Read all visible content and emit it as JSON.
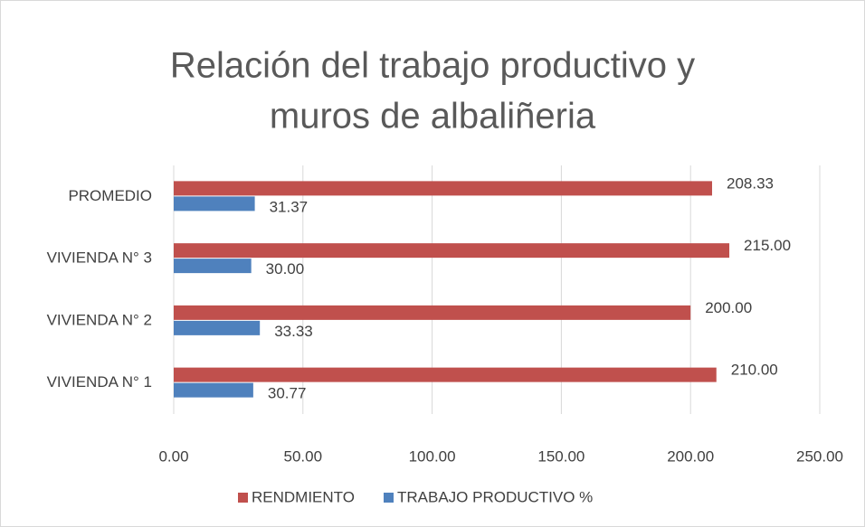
{
  "chart_data": {
    "type": "bar",
    "orientation": "horizontal",
    "title": [
      "Relación del trabajo productivo y",
      "muros de albaliñeria"
    ],
    "categories": [
      "VIVIENDA N° 1",
      "VIVIENDA N° 2",
      "VIVIENDA N° 3",
      "PROMEDIO"
    ],
    "series": [
      {
        "name": "RENDMIENTO",
        "color": "#c0504d",
        "values": [
          210,
          200,
          215,
          208.33
        ],
        "value_labels": [
          "210.00",
          "200.00",
          "215.00",
          "208.33"
        ]
      },
      {
        "name": "TRABAJO PRODUCTIVO  %",
        "color": "#4f81bd",
        "values": [
          30.77,
          33.33,
          30,
          31.37
        ],
        "value_labels": [
          "30.77",
          "33.33",
          "30.00",
          "31.37"
        ]
      }
    ],
    "xlim": [
      0,
      250
    ],
    "xticks": [
      {
        "value": 0,
        "label": "0.00"
      },
      {
        "value": 50,
        "label": "50.00"
      },
      {
        "value": 100,
        "label": "100.00"
      },
      {
        "value": 150,
        "label": "150.00"
      },
      {
        "value": 200,
        "label": "200.00"
      },
      {
        "value": 250,
        "label": "250.00"
      }
    ],
    "grid": true,
    "legend": "bottom"
  }
}
